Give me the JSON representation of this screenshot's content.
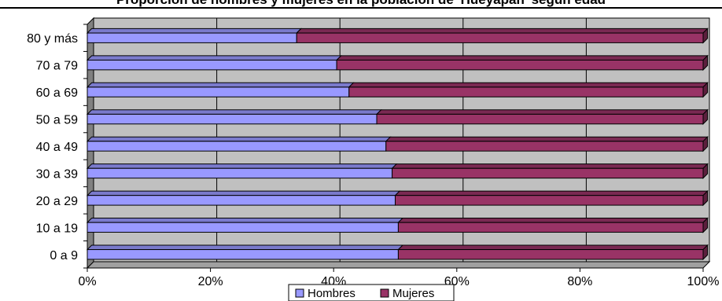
{
  "chart_data": {
    "type": "bar",
    "orientation": "horizontal",
    "stacked": "percent",
    "title": "Proporción de hombres y mujeres en la población de 'Hueyapan' según edad",
    "categories": [
      "80 y más",
      "70 a 79",
      "60 a 69",
      "50 a 59",
      "40 a 49",
      "30 a 39",
      "20 a 29",
      "10 a 19",
      "0 a 9"
    ],
    "series": [
      {
        "name": "Hombres",
        "color": "#9999FF",
        "values": [
          34,
          40.5,
          42.5,
          47,
          48.5,
          49.5,
          50,
          50.5,
          50.5
        ]
      },
      {
        "name": "Mujeres",
        "color": "#993366",
        "values": [
          66,
          59.5,
          57.5,
          53,
          51.5,
          50.5,
          50,
          49.5,
          49.5
        ]
      }
    ],
    "x_ticks": [
      "0%",
      "20%",
      "40%",
      "60%",
      "80%",
      "100%"
    ],
    "xlim": [
      0,
      100
    ],
    "grid": true,
    "legend_position": "bottom"
  }
}
